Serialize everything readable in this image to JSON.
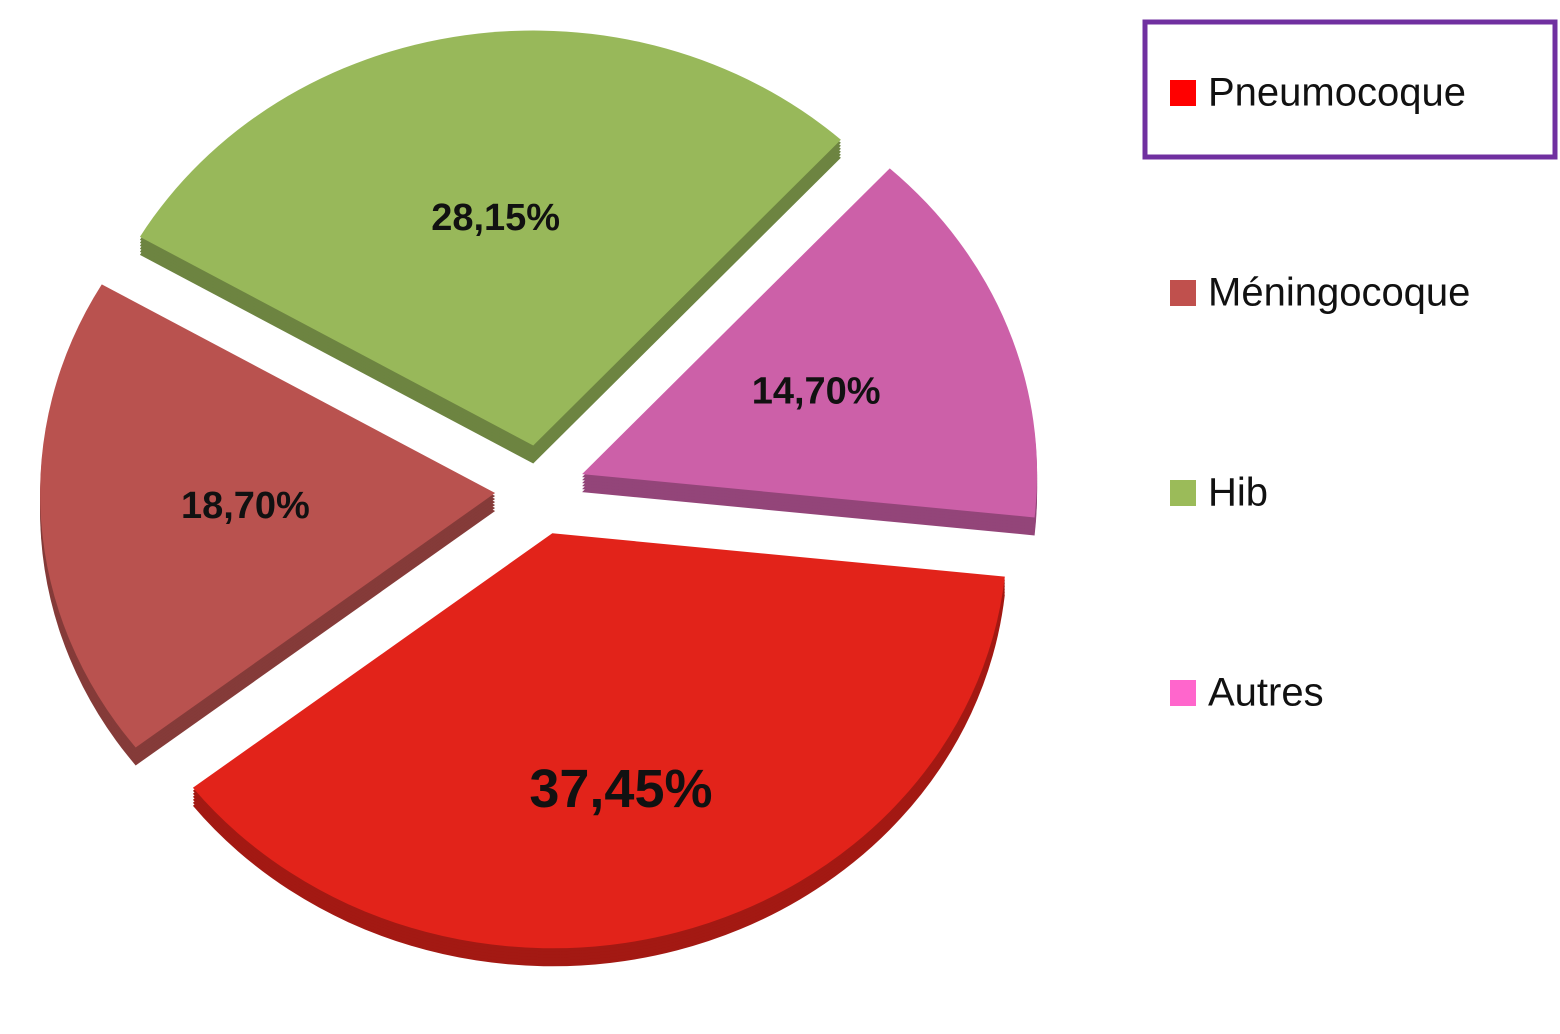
{
  "chart_data": {
    "type": "pie",
    "categories": [
      "Pneumocoque",
      "Méningocoque",
      "Hib",
      "Autres"
    ],
    "values": [
      37.45,
      18.7,
      28.15,
      14.7
    ],
    "value_labels": [
      "37,45%",
      "18,70%",
      "28,15%",
      "14,70%"
    ],
    "colors": [
      "#e2231a",
      "#b9524f",
      "#98b85a",
      "#cc60a8"
    ],
    "legend_colors": [
      "#ff0000",
      "#c0504d",
      "#9bbb59",
      "#ff66cc"
    ],
    "legend": "right"
  }
}
